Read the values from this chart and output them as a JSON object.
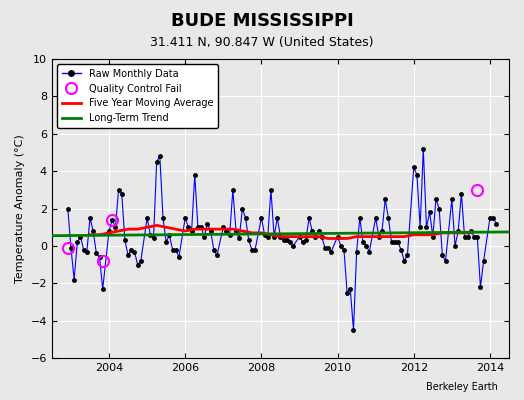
{
  "title": "BUDE MISSISSIPPI",
  "subtitle": "31.411 N, 90.847 W (United States)",
  "ylabel": "Temperature Anomaly (°C)",
  "xlabel": "",
  "credit": "Berkeley Earth",
  "ylim": [
    -6,
    10
  ],
  "yticks": [
    -6,
    -4,
    -2,
    0,
    2,
    4,
    6,
    8,
    10
  ],
  "xlim_start": 2002.5,
  "xlim_end": 2014.5,
  "xticks": [
    2004,
    2006,
    2008,
    2010,
    2012,
    2014
  ],
  "bg_color": "#e8e8e8",
  "plot_bg_color": "#e8e8e8",
  "raw_line_color": "blue",
  "raw_marker_color": "black",
  "moving_avg_color": "red",
  "trend_color": "green",
  "qc_fail_color": "magenta",
  "raw_data_x": [
    2002.917,
    2003.0,
    2003.083,
    2003.167,
    2003.25,
    2003.333,
    2003.417,
    2003.5,
    2003.583,
    2003.667,
    2003.75,
    2003.833,
    2004.0,
    2004.083,
    2004.167,
    2004.25,
    2004.333,
    2004.417,
    2004.5,
    2004.583,
    2004.667,
    2004.75,
    2004.833,
    2005.0,
    2005.083,
    2005.167,
    2005.25,
    2005.333,
    2005.417,
    2005.5,
    2005.583,
    2005.667,
    2005.75,
    2005.833,
    2006.0,
    2006.083,
    2006.167,
    2006.25,
    2006.333,
    2006.417,
    2006.5,
    2006.583,
    2006.667,
    2006.75,
    2006.833,
    2007.0,
    2007.083,
    2007.167,
    2007.25,
    2007.333,
    2007.417,
    2007.5,
    2007.583,
    2007.667,
    2007.75,
    2007.833,
    2008.0,
    2008.083,
    2008.167,
    2008.25,
    2008.333,
    2008.417,
    2008.5,
    2008.583,
    2008.667,
    2008.75,
    2008.833,
    2009.0,
    2009.083,
    2009.167,
    2009.25,
    2009.333,
    2009.417,
    2009.5,
    2009.583,
    2009.667,
    2009.75,
    2009.833,
    2010.0,
    2010.083,
    2010.167,
    2010.25,
    2010.333,
    2010.417,
    2010.5,
    2010.583,
    2010.667,
    2010.75,
    2010.833,
    2011.0,
    2011.083,
    2011.167,
    2011.25,
    2011.333,
    2011.417,
    2011.5,
    2011.583,
    2011.667,
    2011.75,
    2011.833,
    2012.0,
    2012.083,
    2012.167,
    2012.25,
    2012.333,
    2012.417,
    2012.5,
    2012.583,
    2012.667,
    2012.75,
    2012.833,
    2013.0,
    2013.083,
    2013.167,
    2013.25,
    2013.333,
    2013.417,
    2013.5,
    2013.583,
    2013.667,
    2013.75,
    2013.833,
    2014.0,
    2014.083,
    2014.167
  ],
  "raw_data_y": [
    2.0,
    -0.1,
    -1.8,
    0.2,
    0.5,
    -0.2,
    -0.3,
    1.5,
    0.8,
    -0.4,
    -0.6,
    -2.3,
    0.8,
    1.4,
    1.0,
    3.0,
    2.8,
    0.3,
    -0.5,
    -0.2,
    -0.3,
    -1.0,
    -0.8,
    1.5,
    0.6,
    0.4,
    4.5,
    4.8,
    1.5,
    0.2,
    0.6,
    -0.2,
    -0.2,
    -0.6,
    1.5,
    1.0,
    0.8,
    3.8,
    1.0,
    1.0,
    0.5,
    1.2,
    0.8,
    -0.2,
    -0.5,
    1.0,
    0.8,
    0.6,
    3.0,
    0.8,
    0.4,
    2.0,
    1.5,
    0.3,
    -0.2,
    -0.2,
    1.5,
    0.6,
    0.5,
    3.0,
    0.5,
    1.5,
    0.5,
    0.3,
    0.3,
    0.2,
    0.0,
    0.5,
    0.2,
    0.3,
    1.5,
    0.8,
    0.5,
    0.8,
    0.5,
    -0.1,
    -0.1,
    -0.3,
    0.5,
    0.0,
    -0.2,
    -2.5,
    -2.3,
    -4.5,
    -0.3,
    1.5,
    0.2,
    0.0,
    -0.3,
    1.5,
    0.5,
    0.8,
    2.5,
    1.5,
    0.2,
    0.2,
    0.2,
    -0.2,
    -0.8,
    -0.5,
    4.2,
    3.8,
    1.0,
    5.2,
    1.0,
    1.8,
    0.5,
    2.5,
    2.0,
    -0.5,
    -0.8,
    2.5,
    0.0,
    0.8,
    2.8,
    0.5,
    0.5,
    0.8,
    0.5,
    0.5,
    -2.2,
    -0.8,
    1.5,
    1.5,
    1.2
  ],
  "moving_avg_x": [
    2003.5,
    2003.75,
    2004.0,
    2004.25,
    2004.5,
    2004.75,
    2005.0,
    2005.25,
    2005.5,
    2005.75,
    2006.0,
    2006.25,
    2006.5,
    2006.75,
    2007.0,
    2007.25,
    2007.5,
    2007.75,
    2008.0,
    2008.25,
    2008.5,
    2008.75,
    2009.0,
    2009.25,
    2009.5,
    2009.75,
    2010.0,
    2010.25,
    2010.5,
    2010.75,
    2011.0,
    2011.25,
    2011.5,
    2011.75,
    2012.0,
    2012.25,
    2012.5,
    2012.75,
    2013.0,
    2013.25,
    2013.5
  ],
  "moving_avg_y": [
    0.6,
    0.6,
    0.7,
    0.8,
    0.9,
    0.9,
    1.0,
    1.1,
    1.0,
    0.9,
    0.8,
    0.9,
    0.9,
    0.9,
    0.9,
    0.9,
    0.8,
    0.7,
    0.7,
    0.6,
    0.5,
    0.5,
    0.5,
    0.5,
    0.5,
    0.4,
    0.4,
    0.4,
    0.5,
    0.5,
    0.5,
    0.5,
    0.5,
    0.5,
    0.6,
    0.6,
    0.6,
    0.7,
    0.7,
    0.7,
    0.7
  ],
  "trend_x": [
    2002.5,
    2014.5
  ],
  "trend_y": [
    0.55,
    0.75
  ],
  "qc_fail_points": [
    [
      2002.917,
      -0.1
    ],
    [
      2003.833,
      -0.8
    ],
    [
      2004.083,
      1.4
    ],
    [
      2013.667,
      3.0
    ]
  ]
}
